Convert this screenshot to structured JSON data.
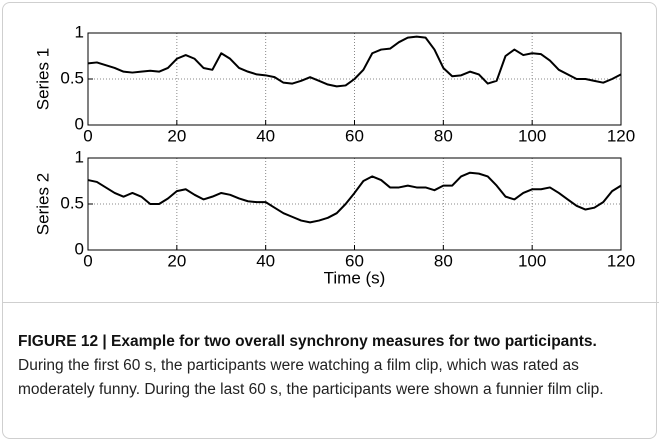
{
  "chart_data": [
    {
      "type": "line",
      "ylabel": "Series 1",
      "x": [
        0,
        2,
        4,
        6,
        8,
        10,
        12,
        14,
        16,
        18,
        20,
        22,
        24,
        26,
        28,
        30,
        32,
        34,
        36,
        38,
        40,
        42,
        44,
        46,
        48,
        50,
        52,
        54,
        56,
        58,
        60,
        62,
        64,
        66,
        68,
        70,
        72,
        74,
        76,
        78,
        80,
        82,
        84,
        86,
        88,
        90,
        92,
        94,
        96,
        98,
        100,
        102,
        104,
        106,
        108,
        110,
        112,
        114,
        116,
        118,
        120
      ],
      "series": [
        {
          "name": "Series 1",
          "color": "#000000",
          "values": [
            0.67,
            0.68,
            0.65,
            0.62,
            0.58,
            0.57,
            0.58,
            0.59,
            0.58,
            0.62,
            0.72,
            0.76,
            0.72,
            0.62,
            0.6,
            0.78,
            0.72,
            0.62,
            0.58,
            0.55,
            0.54,
            0.52,
            0.46,
            0.45,
            0.48,
            0.52,
            0.48,
            0.44,
            0.42,
            0.43,
            0.5,
            0.6,
            0.78,
            0.82,
            0.83,
            0.9,
            0.95,
            0.96,
            0.95,
            0.82,
            0.62,
            0.53,
            0.54,
            0.58,
            0.55,
            0.45,
            0.48,
            0.75,
            0.82,
            0.76,
            0.78,
            0.77,
            0.7,
            0.6,
            0.55,
            0.5,
            0.5,
            0.48,
            0.46,
            0.5,
            0.55
          ]
        }
      ],
      "xlim": [
        0,
        120
      ],
      "xticks": [
        0,
        20,
        40,
        60,
        80,
        100,
        120
      ],
      "ylim": [
        0,
        1
      ],
      "yticks": [
        0,
        0.5,
        1
      ],
      "grid": true
    },
    {
      "type": "line",
      "ylabel": "Series 2",
      "xlabel": "Time (s)",
      "x": [
        0,
        2,
        4,
        6,
        8,
        10,
        12,
        14,
        16,
        18,
        20,
        22,
        24,
        26,
        28,
        30,
        32,
        34,
        36,
        38,
        40,
        42,
        44,
        46,
        48,
        50,
        52,
        54,
        56,
        58,
        60,
        62,
        64,
        66,
        68,
        70,
        72,
        74,
        76,
        78,
        80,
        82,
        84,
        86,
        88,
        90,
        92,
        94,
        96,
        98,
        100,
        102,
        104,
        106,
        108,
        110,
        112,
        114,
        116,
        118,
        120
      ],
      "series": [
        {
          "name": "Series 2",
          "color": "#000000",
          "values": [
            0.76,
            0.74,
            0.68,
            0.62,
            0.58,
            0.62,
            0.58,
            0.5,
            0.5,
            0.56,
            0.64,
            0.66,
            0.6,
            0.55,
            0.58,
            0.62,
            0.6,
            0.56,
            0.53,
            0.52,
            0.52,
            0.46,
            0.4,
            0.36,
            0.32,
            0.3,
            0.32,
            0.35,
            0.4,
            0.5,
            0.62,
            0.75,
            0.8,
            0.76,
            0.68,
            0.68,
            0.7,
            0.68,
            0.68,
            0.65,
            0.7,
            0.7,
            0.8,
            0.84,
            0.83,
            0.8,
            0.7,
            0.58,
            0.55,
            0.62,
            0.66,
            0.66,
            0.68,
            0.62,
            0.55,
            0.48,
            0.44,
            0.46,
            0.52,
            0.64,
            0.7
          ]
        }
      ],
      "xlim": [
        0,
        120
      ],
      "xticks": [
        0,
        20,
        40,
        60,
        80,
        100,
        120
      ],
      "ylim": [
        0,
        1
      ],
      "yticks": [
        0,
        0.5,
        1
      ],
      "grid": true
    }
  ],
  "caption": {
    "title": "FIGURE 12 | Example for two overall synchrony measures for two participants.",
    "text": "During the first 60 s, the participants were watching a film clip, which was rated as moderately funny. During the last 60 s, the participants were shown a funnier film clip."
  }
}
